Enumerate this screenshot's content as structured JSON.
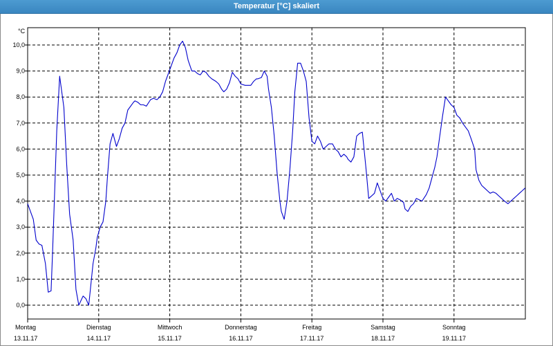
{
  "window": {
    "title": "Temperatur [°C] skaliert"
  },
  "chart_data": {
    "type": "line",
    "title": "Temperatur [°C] skaliert",
    "ylabel": "°C",
    "xlabel": "",
    "ylim": [
      -0.5,
      10.5
    ],
    "grid": true,
    "yticks": [
      "0,0",
      "1,0",
      "2,0",
      "3,0",
      "4,0",
      "5,0",
      "6,0",
      "7,0",
      "8,0",
      "9,0",
      "10,0"
    ],
    "xticks": [
      {
        "day": "Montag",
        "date": "13.11.17"
      },
      {
        "day": "Dienstag",
        "date": "14.11.17"
      },
      {
        "day": "Mittwoch",
        "date": "15.11.17"
      },
      {
        "day": "Donnerstag",
        "date": "16.11.17"
      },
      {
        "day": "Freitag",
        "date": "17.11.17"
      },
      {
        "day": "Samstag",
        "date": "18.11.17"
      },
      {
        "day": "Sonntag",
        "date": "19.11.17"
      }
    ],
    "x_unit": "days since Monday 13.11.17 00:00",
    "series": [
      {
        "color": "#0000cc",
        "x": [
          0.0,
          0.08,
          0.12,
          0.16,
          0.2,
          0.25,
          0.29,
          0.33,
          0.35,
          0.41,
          0.45,
          0.51,
          0.55,
          0.59,
          0.64,
          0.68,
          0.72,
          0.78,
          0.82,
          0.86,
          0.92,
          0.96,
          0.98,
          1.02,
          1.06,
          1.1,
          1.12,
          1.16,
          1.2,
          1.25,
          1.29,
          1.33,
          1.37,
          1.41,
          1.49,
          1.51,
          1.55,
          1.59,
          1.63,
          1.67,
          1.73,
          1.77,
          1.82,
          1.86,
          1.9,
          1.94,
          1.98,
          2.02,
          2.06,
          2.1,
          2.14,
          2.18,
          2.22,
          2.26,
          2.31,
          2.35,
          2.39,
          2.43,
          2.47,
          2.51,
          2.55,
          2.59,
          2.65,
          2.69,
          2.73,
          2.76,
          2.8,
          2.84,
          2.88,
          2.92,
          2.96,
          3.0,
          3.06,
          3.1,
          3.14,
          3.18,
          3.22,
          3.24,
          3.29,
          3.33,
          3.37,
          3.39,
          3.43,
          3.47,
          3.51,
          3.55,
          3.57,
          3.61,
          3.65,
          3.69,
          3.73,
          3.76,
          3.8,
          3.84,
          3.88,
          3.92,
          3.96,
          4.0,
          4.04,
          4.08,
          4.12,
          4.16,
          4.2,
          4.24,
          4.29,
          4.33,
          4.37,
          4.41,
          4.45,
          4.49,
          4.51,
          4.55,
          4.59,
          4.63,
          4.67,
          4.71,
          4.76,
          4.8,
          4.84,
          4.88,
          4.92,
          4.96,
          5.0,
          5.04,
          5.08,
          5.12,
          5.16,
          5.2,
          5.24,
          5.29,
          5.31,
          5.35,
          5.39,
          5.43,
          5.47,
          5.55,
          5.61,
          5.65,
          5.69,
          5.73,
          5.76,
          5.8,
          5.84,
          5.88,
          5.92,
          5.96,
          6.0,
          6.04,
          6.08,
          6.12,
          6.16,
          6.2,
          6.24,
          6.29,
          6.31,
          6.35,
          6.39,
          6.43,
          6.47,
          6.51,
          6.55,
          6.59,
          6.63,
          6.67,
          6.71,
          6.76,
          6.8,
          6.84,
          6.88,
          6.92,
          6.96,
          7.0
        ],
        "values": [
          3.9,
          3.3,
          2.5,
          2.35,
          2.3,
          1.6,
          0.5,
          0.55,
          2.0,
          6.7,
          8.8,
          7.6,
          5.4,
          3.5,
          2.5,
          0.6,
          0.0,
          0.35,
          0.25,
          0.0,
          1.6,
          2.2,
          2.6,
          3.0,
          3.2,
          4.0,
          4.8,
          6.2,
          6.6,
          6.1,
          6.4,
          6.8,
          7.0,
          7.5,
          7.8,
          7.85,
          7.8,
          7.7,
          7.7,
          7.65,
          7.9,
          7.95,
          7.9,
          8.0,
          8.2,
          8.6,
          8.9,
          9.2,
          9.5,
          9.7,
          10.0,
          10.15,
          9.9,
          9.4,
          9.0,
          9.0,
          8.9,
          8.85,
          9.0,
          8.95,
          8.8,
          8.7,
          8.6,
          8.5,
          8.3,
          8.2,
          8.3,
          8.55,
          8.95,
          8.8,
          8.7,
          8.5,
          8.45,
          8.45,
          8.45,
          8.6,
          8.7,
          8.7,
          8.75,
          9.0,
          8.8,
          8.3,
          7.6,
          6.5,
          5.1,
          4.0,
          3.6,
          3.3,
          4.0,
          5.2,
          6.7,
          8.2,
          9.3,
          9.3,
          9.0,
          8.6,
          7.2,
          6.3,
          6.2,
          6.5,
          6.3,
          6.0,
          6.1,
          6.2,
          6.2,
          6.0,
          5.9,
          5.7,
          5.8,
          5.7,
          5.6,
          5.5,
          5.7,
          6.5,
          6.6,
          6.65,
          5.3,
          4.1,
          4.2,
          4.3,
          4.7,
          4.4,
          4.1,
          4.0,
          4.15,
          4.3,
          4.0,
          4.1,
          4.05,
          3.95,
          3.7,
          3.6,
          3.8,
          3.9,
          4.1,
          4.0,
          4.25,
          4.5,
          4.9,
          5.3,
          5.7,
          6.5,
          7.3,
          8.0,
          7.85,
          7.7,
          7.6,
          7.3,
          7.2,
          7.0,
          6.85,
          6.7,
          6.4,
          6.0,
          5.2,
          4.8,
          4.6,
          4.5,
          4.4,
          4.3,
          4.35,
          4.3,
          4.2,
          4.1,
          4.0,
          3.9,
          4.0,
          4.1,
          4.2,
          4.3,
          4.4,
          4.5
        ]
      }
    ]
  }
}
